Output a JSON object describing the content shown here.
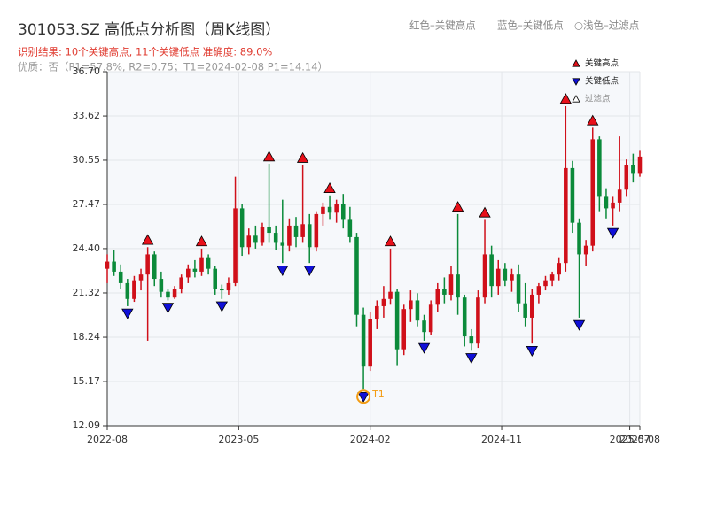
{
  "chart_data": {
    "type": "candlestick",
    "title": "301053.SZ 高低点分析图（周K线图）",
    "subtitle": "识别结果: 10个关键高点, 11个关键低点  准确度: 89.0%",
    "info": "优质：否（P1=57.8%, R2=0.75；T1=2024-02-08 P1=14.14）",
    "notes": [
      "红色–关键高点",
      "蓝色–关键低点",
      "○浅色–过滤点"
    ],
    "up_color": "#d0101a",
    "down_color": "#0b8a3a",
    "grid": true,
    "xlim": [
      0,
      158
    ],
    "xticks": [
      {
        "value": 0,
        "label": "2022-08"
      },
      {
        "value": 39,
        "label": "2023-05"
      },
      {
        "value": 78,
        "label": "2024-02"
      },
      {
        "value": 117,
        "label": "2024-11"
      },
      {
        "value": 155,
        "label": "2025-07"
      },
      {
        "value": 158,
        "label": "2025-08"
      }
    ],
    "ylim": [
      12.09,
      36.7
    ],
    "yticks": [
      12.09,
      15.17,
      18.24,
      21.32,
      {
        "value": 24.4,
        "label": "24.40"
      },
      27.47,
      30.55,
      33.62,
      {
        "value": 36.7,
        "label": "36.70"
      }
    ],
    "x": [
      0,
      2,
      4,
      6,
      8,
      10,
      12,
      14,
      16,
      18,
      20,
      22,
      24,
      26,
      28,
      30,
      32,
      34,
      36,
      38,
      40,
      42,
      44,
      46,
      48,
      50,
      52,
      54,
      56,
      58,
      60,
      62,
      64,
      66,
      68,
      70,
      72,
      74,
      76,
      78,
      80,
      82,
      84,
      86,
      88,
      90,
      92,
      94,
      96,
      98,
      100,
      102,
      104,
      106,
      108,
      110,
      112,
      114,
      116,
      118,
      120,
      122,
      124,
      126,
      128,
      130,
      132,
      134,
      136,
      138,
      140,
      142,
      144,
      146,
      148,
      150,
      152,
      154,
      156,
      158
    ],
    "open": [
      23.0,
      23.5,
      22.8,
      22.0,
      20.9,
      22.2,
      22.6,
      24.0,
      22.3,
      21.4,
      21.0,
      21.6,
      22.4,
      23.0,
      22.8,
      23.8,
      23.0,
      21.6,
      21.5,
      22.0,
      27.2,
      24.5,
      25.3,
      24.8,
      25.9,
      25.5,
      24.8,
      24.6,
      26.0,
      25.2,
      26.1,
      24.5,
      26.8,
      27.3,
      26.9,
      27.5,
      26.4,
      25.2,
      19.8,
      16.2,
      19.5,
      20.4,
      20.9,
      21.4,
      17.4,
      20.2,
      20.8,
      19.4,
      18.6,
      20.5,
      21.6,
      21.2,
      22.6,
      21.0,
      18.3,
      17.8,
      21.0,
      24.0,
      21.8,
      23.0,
      22.2,
      22.6,
      20.6,
      19.6,
      21.2,
      21.8,
      22.2,
      22.6,
      23.4,
      30.0,
      26.2,
      24.0,
      24.6,
      32.0,
      28.0,
      27.2,
      27.6,
      28.5,
      30.2,
      29.6
    ],
    "high": [
      24.0,
      24.3,
      23.3,
      22.3,
      22.5,
      23.0,
      24.5,
      24.2,
      22.8,
      21.6,
      21.8,
      22.6,
      23.3,
      23.6,
      24.4,
      24.0,
      23.2,
      21.9,
      22.4,
      29.4,
      27.5,
      25.8,
      26.0,
      26.2,
      30.3,
      26.0,
      27.8,
      26.5,
      26.6,
      30.2,
      26.8,
      27.0,
      27.6,
      28.1,
      27.8,
      28.2,
      27.3,
      25.5,
      20.3,
      20.0,
      20.8,
      21.8,
      24.4,
      21.6,
      20.5,
      21.5,
      21.3,
      19.8,
      20.8,
      22.0,
      22.4,
      23.2,
      26.8,
      21.2,
      18.8,
      21.5,
      26.4,
      24.6,
      23.6,
      23.4,
      23.0,
      23.3,
      22.0,
      21.6,
      22.0,
      22.5,
      22.8,
      23.8,
      34.3,
      30.5,
      26.5,
      25.0,
      32.8,
      32.2,
      28.6,
      28.0,
      32.2,
      30.6,
      31.0,
      31.2
    ],
    "low": [
      22.0,
      22.5,
      21.6,
      20.4,
      20.7,
      21.5,
      18.0,
      21.8,
      21.0,
      20.8,
      20.9,
      21.3,
      22.0,
      22.4,
      22.5,
      22.6,
      21.2,
      20.9,
      21.2,
      21.8,
      23.9,
      24.0,
      24.4,
      24.6,
      24.8,
      24.3,
      23.4,
      24.2,
      24.5,
      24.8,
      23.4,
      24.2,
      26.0,
      26.4,
      26.2,
      25.8,
      24.8,
      19.0,
      14.6,
      15.9,
      18.8,
      19.6,
      20.5,
      16.3,
      17.0,
      19.3,
      19.0,
      18.0,
      18.4,
      20.0,
      20.6,
      20.8,
      19.8,
      17.6,
      17.3,
      17.5,
      20.6,
      21.0,
      21.2,
      21.8,
      21.4,
      20.0,
      19.0,
      17.8,
      20.6,
      21.5,
      21.8,
      22.2,
      22.8,
      25.5,
      19.6,
      23.2,
      24.2,
      27.0,
      26.5,
      26.0,
      27.0,
      28.0,
      29.0,
      29.4
    ],
    "close": [
      23.5,
      22.8,
      22.0,
      20.9,
      22.2,
      22.6,
      24.0,
      22.3,
      21.4,
      21.0,
      21.6,
      22.4,
      23.0,
      22.8,
      23.8,
      23.0,
      21.6,
      21.5,
      22.0,
      27.2,
      24.5,
      25.3,
      24.8,
      25.9,
      25.5,
      24.8,
      24.6,
      26.0,
      25.2,
      26.1,
      24.5,
      26.8,
      27.3,
      26.9,
      27.5,
      26.4,
      25.2,
      19.8,
      16.2,
      19.5,
      20.4,
      20.9,
      21.4,
      17.4,
      20.2,
      20.8,
      19.4,
      18.6,
      20.5,
      21.6,
      21.2,
      22.6,
      21.0,
      18.3,
      17.8,
      21.0,
      24.0,
      21.8,
      23.0,
      22.2,
      22.6,
      20.6,
      19.6,
      21.2,
      21.8,
      22.2,
      22.6,
      23.4,
      30.0,
      26.2,
      24.0,
      24.6,
      32.0,
      28.0,
      27.2,
      27.6,
      28.5,
      30.2,
      29.6,
      30.8
    ],
    "markers": [
      {
        "name": "关键高点",
        "color": "#e8101a",
        "kind": "high",
        "x": [
          12,
          28,
          48,
          58,
          66,
          84,
          104,
          112,
          136,
          144
        ],
        "values": [
          24.5,
          24.4,
          30.3,
          30.2,
          28.1,
          24.4,
          26.8,
          26.4,
          34.3,
          32.8
        ]
      },
      {
        "name": "关键低点",
        "color": "#1010d8",
        "kind": "low",
        "x": [
          6,
          18,
          34,
          52,
          60,
          76,
          94,
          108,
          126,
          140,
          150
        ],
        "values": [
          20.4,
          20.8,
          20.9,
          23.4,
          23.4,
          14.6,
          18.0,
          17.3,
          17.8,
          19.6,
          26.0
        ]
      },
      {
        "name": "过滤点",
        "color": "#ffffff",
        "kind": "filtered"
      }
    ],
    "annotation": {
      "text": "T1",
      "x": 76,
      "y": 14.6,
      "color": "#f39c12"
    }
  }
}
